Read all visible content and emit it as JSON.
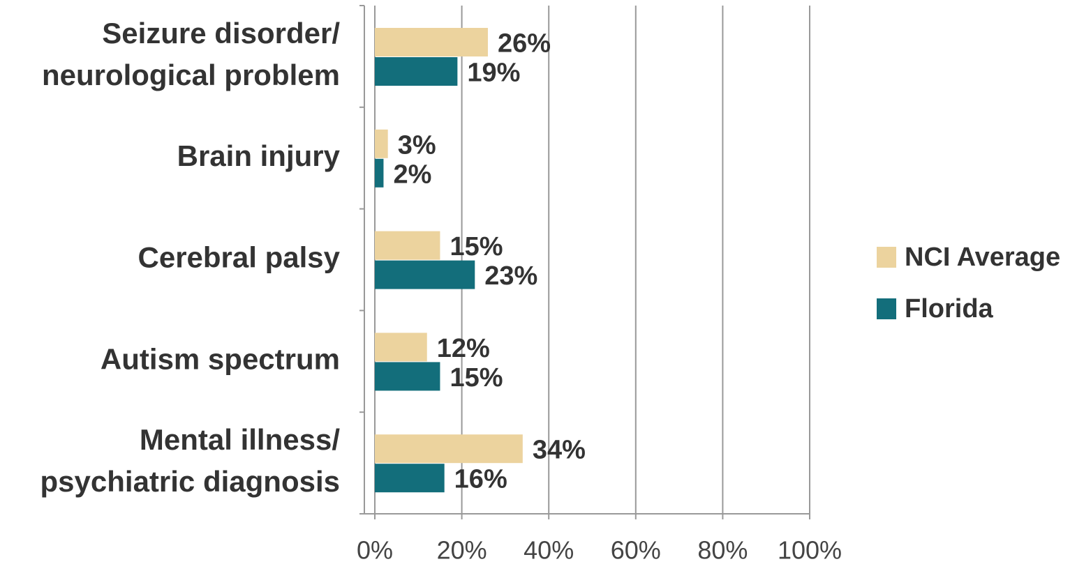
{
  "chart_data": {
    "type": "bar",
    "orientation": "horizontal",
    "categories": [
      [
        "Seizure disorder/",
        "neurological problem"
      ],
      [
        "Brain injury"
      ],
      [
        "Cerebral palsy"
      ],
      [
        "Autism spectrum"
      ],
      [
        "Mental illness/",
        "psychiatric diagnosis"
      ]
    ],
    "series": [
      {
        "name": "NCI Average",
        "color": "#ecd39e",
        "values": [
          26,
          3,
          15,
          12,
          34
        ],
        "value_labels": [
          "26%",
          "3%",
          "15%",
          "12%",
          "34%"
        ]
      },
      {
        "name": "Florida",
        "color": "#136e7b",
        "values": [
          19,
          2,
          23,
          15,
          16
        ],
        "value_labels": [
          "19%",
          "2%",
          "23%",
          "15%",
          "16%"
        ]
      }
    ],
    "xlim": [
      0,
      100
    ],
    "xticks": [
      {
        "value": 0,
        "label": "0%"
      },
      {
        "value": 20,
        "label": "20%"
      },
      {
        "value": 40,
        "label": "40%"
      },
      {
        "value": 60,
        "label": "60%"
      },
      {
        "value": 80,
        "label": "80%"
      },
      {
        "value": 100,
        "label": "100%"
      }
    ],
    "grid": true,
    "legend": "right"
  }
}
